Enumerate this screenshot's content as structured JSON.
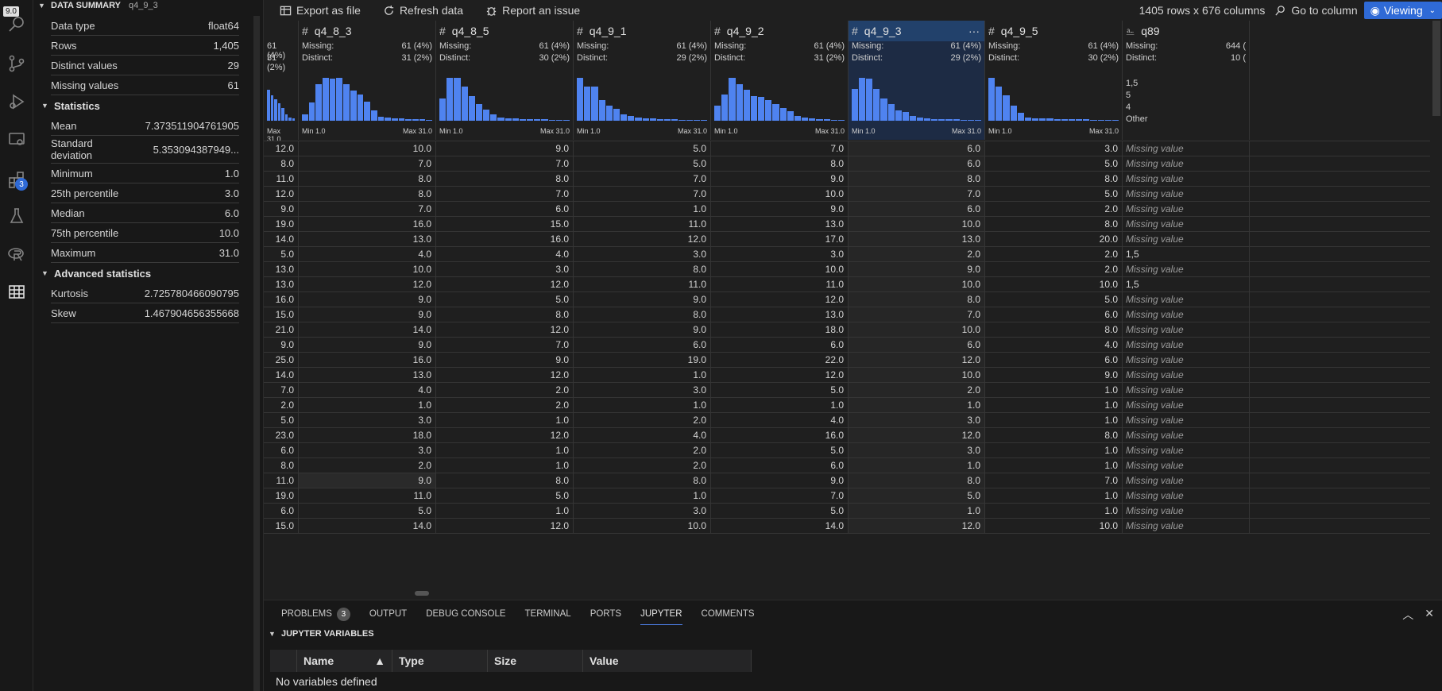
{
  "tooltip": "9.0",
  "activity": {
    "badge": "3"
  },
  "summary": {
    "title": "DATA SUMMARY",
    "column": "q4_9_3",
    "basic": [
      {
        "k": "Data type",
        "v": "float64"
      },
      {
        "k": "Rows",
        "v": "1,405"
      },
      {
        "k": "Distinct values",
        "v": "29"
      },
      {
        "k": "Missing values",
        "v": "61"
      }
    ],
    "statistics_label": "Statistics",
    "statistics": [
      {
        "k": "Mean",
        "v": "7.373511904761905"
      },
      {
        "k": "Standard deviation",
        "v": "5.353094387949..."
      },
      {
        "k": "Minimum",
        "v": "1.0"
      },
      {
        "k": "25th percentile",
        "v": "3.0"
      },
      {
        "k": "Median",
        "v": "6.0"
      },
      {
        "k": "75th percentile",
        "v": "10.0"
      },
      {
        "k": "Maximum",
        "v": "31.0"
      }
    ],
    "advanced_label": "Advanced statistics",
    "advanced": [
      {
        "k": "Kurtosis",
        "v": "2.725780466090795"
      },
      {
        "k": "Skew",
        "v": "1.467904656355668"
      }
    ]
  },
  "toolbar": {
    "export": "Export as file",
    "refresh": "Refresh data",
    "report": "Report an issue",
    "dims": "1405 rows x 676 columns",
    "goto": "Go to column",
    "viewing": "Viewing"
  },
  "labels": {
    "missing": "Missing:",
    "distinct": "Distinct:",
    "min": "Min 1.0",
    "max": "Max 31.0",
    "missing_value": "Missing value"
  },
  "columns": [
    {
      "name": "",
      "missing": "61 (4%)",
      "distinct": "31 (2%)",
      "hist": [
        0.72,
        0.6,
        0.5,
        0.4,
        0.3,
        0.15,
        0.08,
        0.06
      ]
    },
    {
      "name": "q4_8_3",
      "missing": "61 (4%)",
      "distinct": "31 (2%)",
      "hist": [
        0.15,
        0.42,
        0.85,
        1.0,
        0.98,
        1.0,
        0.85,
        0.7,
        0.62,
        0.45,
        0.25,
        0.1,
        0.08,
        0.06,
        0.05,
        0.04,
        0.03,
        0.03,
        0.02
      ]
    },
    {
      "name": "q4_8_5",
      "missing": "61 (4%)",
      "distinct": "30 (2%)",
      "hist": [
        0.52,
        1.0,
        1.0,
        0.8,
        0.58,
        0.38,
        0.26,
        0.15,
        0.08,
        0.05,
        0.05,
        0.04,
        0.04,
        0.03,
        0.03,
        0.02,
        0.02,
        0.02
      ]
    },
    {
      "name": "q4_9_1",
      "missing": "61 (4%)",
      "distinct": "29 (2%)",
      "hist": [
        1.0,
        0.8,
        0.8,
        0.48,
        0.36,
        0.27,
        0.15,
        0.12,
        0.08,
        0.06,
        0.05,
        0.04,
        0.03,
        0.03,
        0.02,
        0.02,
        0.02,
        0.02
      ]
    },
    {
      "name": "q4_9_2",
      "missing": "61 (4%)",
      "distinct": "31 (2%)",
      "hist": [
        0.35,
        0.62,
        1.0,
        0.85,
        0.72,
        0.58,
        0.55,
        0.48,
        0.38,
        0.3,
        0.22,
        0.12,
        0.08,
        0.05,
        0.04,
        0.03,
        0.02,
        0.02
      ]
    },
    {
      "name": "q4_9_3",
      "missing": "61 (4%)",
      "distinct": "29 (2%)",
      "hist": [
        0.75,
        1.0,
        0.98,
        0.75,
        0.52,
        0.38,
        0.25,
        0.2,
        0.12,
        0.08,
        0.05,
        0.04,
        0.04,
        0.03,
        0.03,
        0.02,
        0.02,
        0.02
      ]
    },
    {
      "name": "q4_9_5",
      "missing": "61 (4%)",
      "distinct": "30 (2%)",
      "hist": [
        1.0,
        0.8,
        0.6,
        0.35,
        0.18,
        0.08,
        0.06,
        0.05,
        0.05,
        0.04,
        0.04,
        0.03,
        0.03,
        0.03,
        0.02,
        0.02,
        0.02,
        0.02
      ]
    },
    {
      "name": "q89",
      "missing": "644 (",
      "distinct": "10 (",
      "cats": [
        "1,5",
        "5",
        "4",
        "Other"
      ]
    }
  ],
  "rows": [
    [
      "12.0",
      "10.0",
      "9.0",
      "5.0",
      "7.0",
      "6.0",
      "3.0",
      null
    ],
    [
      "8.0",
      "7.0",
      "7.0",
      "5.0",
      "8.0",
      "6.0",
      "5.0",
      null
    ],
    [
      "11.0",
      "8.0",
      "8.0",
      "7.0",
      "9.0",
      "8.0",
      "8.0",
      null
    ],
    [
      "12.0",
      "8.0",
      "7.0",
      "7.0",
      "10.0",
      "7.0",
      "5.0",
      null
    ],
    [
      "9.0",
      "7.0",
      "6.0",
      "1.0",
      "9.0",
      "6.0",
      "2.0",
      null
    ],
    [
      "19.0",
      "16.0",
      "15.0",
      "11.0",
      "13.0",
      "10.0",
      "8.0",
      null
    ],
    [
      "14.0",
      "13.0",
      "16.0",
      "12.0",
      "17.0",
      "13.0",
      "20.0",
      null
    ],
    [
      "5.0",
      "4.0",
      "4.0",
      "3.0",
      "3.0",
      "2.0",
      "2.0",
      "1,5"
    ],
    [
      "13.0",
      "10.0",
      "3.0",
      "8.0",
      "10.0",
      "9.0",
      "2.0",
      null
    ],
    [
      "13.0",
      "12.0",
      "12.0",
      "11.0",
      "11.0",
      "10.0",
      "10.0",
      "1,5"
    ],
    [
      "16.0",
      "9.0",
      "5.0",
      "9.0",
      "12.0",
      "8.0",
      "5.0",
      null
    ],
    [
      "15.0",
      "9.0",
      "8.0",
      "8.0",
      "13.0",
      "7.0",
      "6.0",
      null
    ],
    [
      "21.0",
      "14.0",
      "12.0",
      "9.0",
      "18.0",
      "10.0",
      "8.0",
      null
    ],
    [
      "9.0",
      "9.0",
      "7.0",
      "6.0",
      "6.0",
      "6.0",
      "4.0",
      null
    ],
    [
      "25.0",
      "16.0",
      "9.0",
      "19.0",
      "22.0",
      "12.0",
      "6.0",
      null
    ],
    [
      "14.0",
      "13.0",
      "12.0",
      "1.0",
      "12.0",
      "10.0",
      "9.0",
      null
    ],
    [
      "7.0",
      "4.0",
      "2.0",
      "3.0",
      "5.0",
      "2.0",
      "1.0",
      null
    ],
    [
      "2.0",
      "1.0",
      "2.0",
      "1.0",
      "1.0",
      "1.0",
      "1.0",
      null
    ],
    [
      "5.0",
      "3.0",
      "1.0",
      "2.0",
      "4.0",
      "3.0",
      "1.0",
      null
    ],
    [
      "23.0",
      "18.0",
      "12.0",
      "4.0",
      "16.0",
      "12.0",
      "8.0",
      null
    ],
    [
      "6.0",
      "3.0",
      "1.0",
      "2.0",
      "5.0",
      "3.0",
      "1.0",
      null
    ],
    [
      "8.0",
      "2.0",
      "1.0",
      "2.0",
      "6.0",
      "1.0",
      "1.0",
      null
    ],
    [
      "11.0",
      "9.0",
      "8.0",
      "8.0",
      "9.0",
      "8.0",
      "7.0",
      null
    ],
    [
      "19.0",
      "11.0",
      "5.0",
      "1.0",
      "7.0",
      "5.0",
      "1.0",
      null
    ],
    [
      "6.0",
      "5.0",
      "1.0",
      "3.0",
      "5.0",
      "1.0",
      "1.0",
      null
    ],
    [
      "15.0",
      "14.0",
      "12.0",
      "10.0",
      "14.0",
      "12.0",
      "10.0",
      null
    ]
  ],
  "panel": {
    "tabs": [
      "PROBLEMS",
      "OUTPUT",
      "DEBUG CONSOLE",
      "TERMINAL",
      "PORTS",
      "JUPYTER",
      "COMMENTS"
    ],
    "problems_badge": "3",
    "jv_title": "JUPYTER VARIABLES",
    "headers": [
      "Name",
      "Type",
      "Size",
      "Value"
    ],
    "empty": "No variables defined"
  }
}
